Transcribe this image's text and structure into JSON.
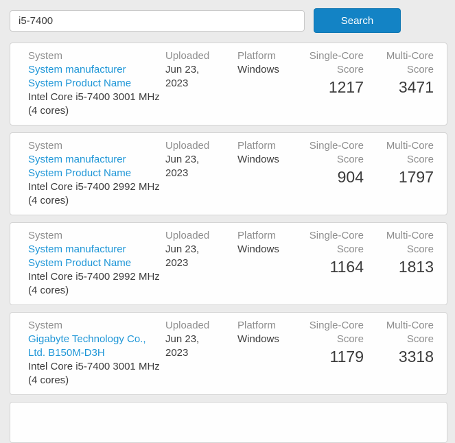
{
  "colors": {
    "accent_blue": "#1383c5",
    "link_blue": "#1e96d7",
    "page_bg": "#ebebeb"
  },
  "search": {
    "value": "i5-7400",
    "button_label": "Search"
  },
  "columns": {
    "system": "System",
    "uploaded": "Uploaded",
    "platform": "Platform",
    "single_core": "Single-Core\nScore",
    "multi_core": "Multi-Core\nScore"
  },
  "results": [
    {
      "system_link": "System manufacturer\nSystem Product Name",
      "cpu": "Intel Core i5-7400 3001 MHz\n(4 cores)",
      "uploaded": "Jun 23,\n2023",
      "platform": "Windows",
      "single_core": "1217",
      "multi_core": "3471"
    },
    {
      "system_link": "System manufacturer\nSystem Product Name",
      "cpu": "Intel Core i5-7400 2992 MHz\n(4 cores)",
      "uploaded": "Jun 23,\n2023",
      "platform": "Windows",
      "single_core": "904",
      "multi_core": "1797"
    },
    {
      "system_link": "System manufacturer\nSystem Product Name",
      "cpu": "Intel Core i5-7400 2992 MHz\n(4 cores)",
      "uploaded": "Jun 23,\n2023",
      "platform": "Windows",
      "single_core": "1164",
      "multi_core": "1813"
    },
    {
      "system_link": "Gigabyte Technology Co.,\nLtd. B150M-D3H",
      "cpu": "Intel Core i5-7400 3001 MHz\n(4 cores)",
      "uploaded": "Jun 23,\n2023",
      "platform": "Windows",
      "single_core": "1179",
      "multi_core": "3318"
    }
  ]
}
